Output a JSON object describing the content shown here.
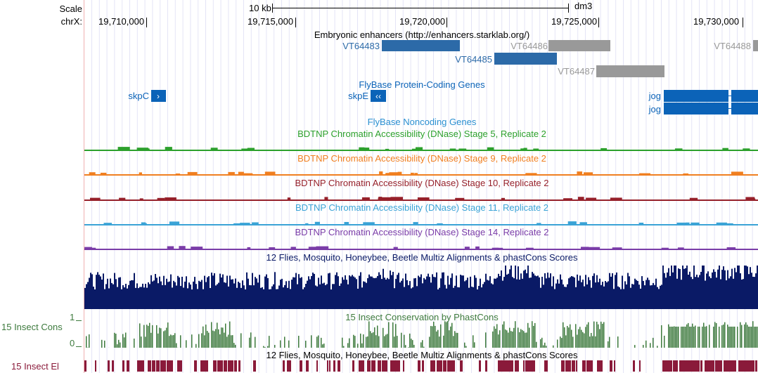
{
  "ruler": {
    "scale_label": "Scale",
    "chrom_label": "chrX:",
    "scale_bar_label": "10 kb",
    "assembly": "dm3",
    "positions": [
      "19,710,000",
      "19,715,000",
      "19,720,000",
      "19,725,000",
      "19,730,000"
    ]
  },
  "tracks": {
    "enhancers": {
      "title": "Embryonic enhancers (http://enhancers.starklab.org/)",
      "items": [
        {
          "name": "VT64483",
          "color": "#2c6aa8"
        },
        {
          "name": "VT64485",
          "color": "#2c6aa8"
        },
        {
          "name": "VT64486",
          "color": "#999999"
        },
        {
          "name": "VT64487",
          "color": "#999999"
        },
        {
          "name": "VT64488",
          "color": "#999999"
        }
      ]
    },
    "coding_genes": {
      "title": "FlyBase Protein-Coding Genes",
      "color": "#0b63b8",
      "genes": [
        {
          "name": "skpC",
          "strand": "+"
        },
        {
          "name": "skpE",
          "strand": "-"
        },
        {
          "name": "jog",
          "strand": "+"
        },
        {
          "name": "jog",
          "strand": "+"
        }
      ]
    },
    "noncoding_genes": {
      "title": "FlyBase Noncoding Genes",
      "color": "#2a8fd1"
    },
    "dnase": [
      {
        "title": "BDTNP Chromatin Accessibility (DNase) Stage 5, Replicate 2",
        "color": "#2ca02c"
      },
      {
        "title": "BDTNP Chromatin Accessibility (DNase) Stage 9, Replicate 2",
        "color": "#f07f20"
      },
      {
        "title": "BDTNP Chromatin Accessibility (DNase) Stage 10, Replicate 2",
        "color": "#96202a"
      },
      {
        "title": "BDTNP Chromatin Accessibility (DNase) Stage 11, Replicate 2",
        "color": "#3aa3d6"
      },
      {
        "title": "BDTNP Chromatin Accessibility (DNase) Stage 14, Replicate 2",
        "color": "#7a3ca8"
      }
    ],
    "multiz": {
      "title": "12 Flies, Mosquito, Honeybee, Beetle Multiz Alignments & phastCons Scores",
      "color": "#0a1a66"
    },
    "phastcons": {
      "title": "15 Insect Conservation by PhastCons",
      "side_label": "15 Insect Cons",
      "ymax": "1",
      "ymin": "0",
      "color": "#3d7a3d"
    },
    "elements": {
      "title": "12 Flies, Mosquito, Honeybee, Beetle Multiz Alignments & phastCons Scores",
      "side_label": "15 Insect El",
      "color": "#8a1a3a"
    }
  }
}
